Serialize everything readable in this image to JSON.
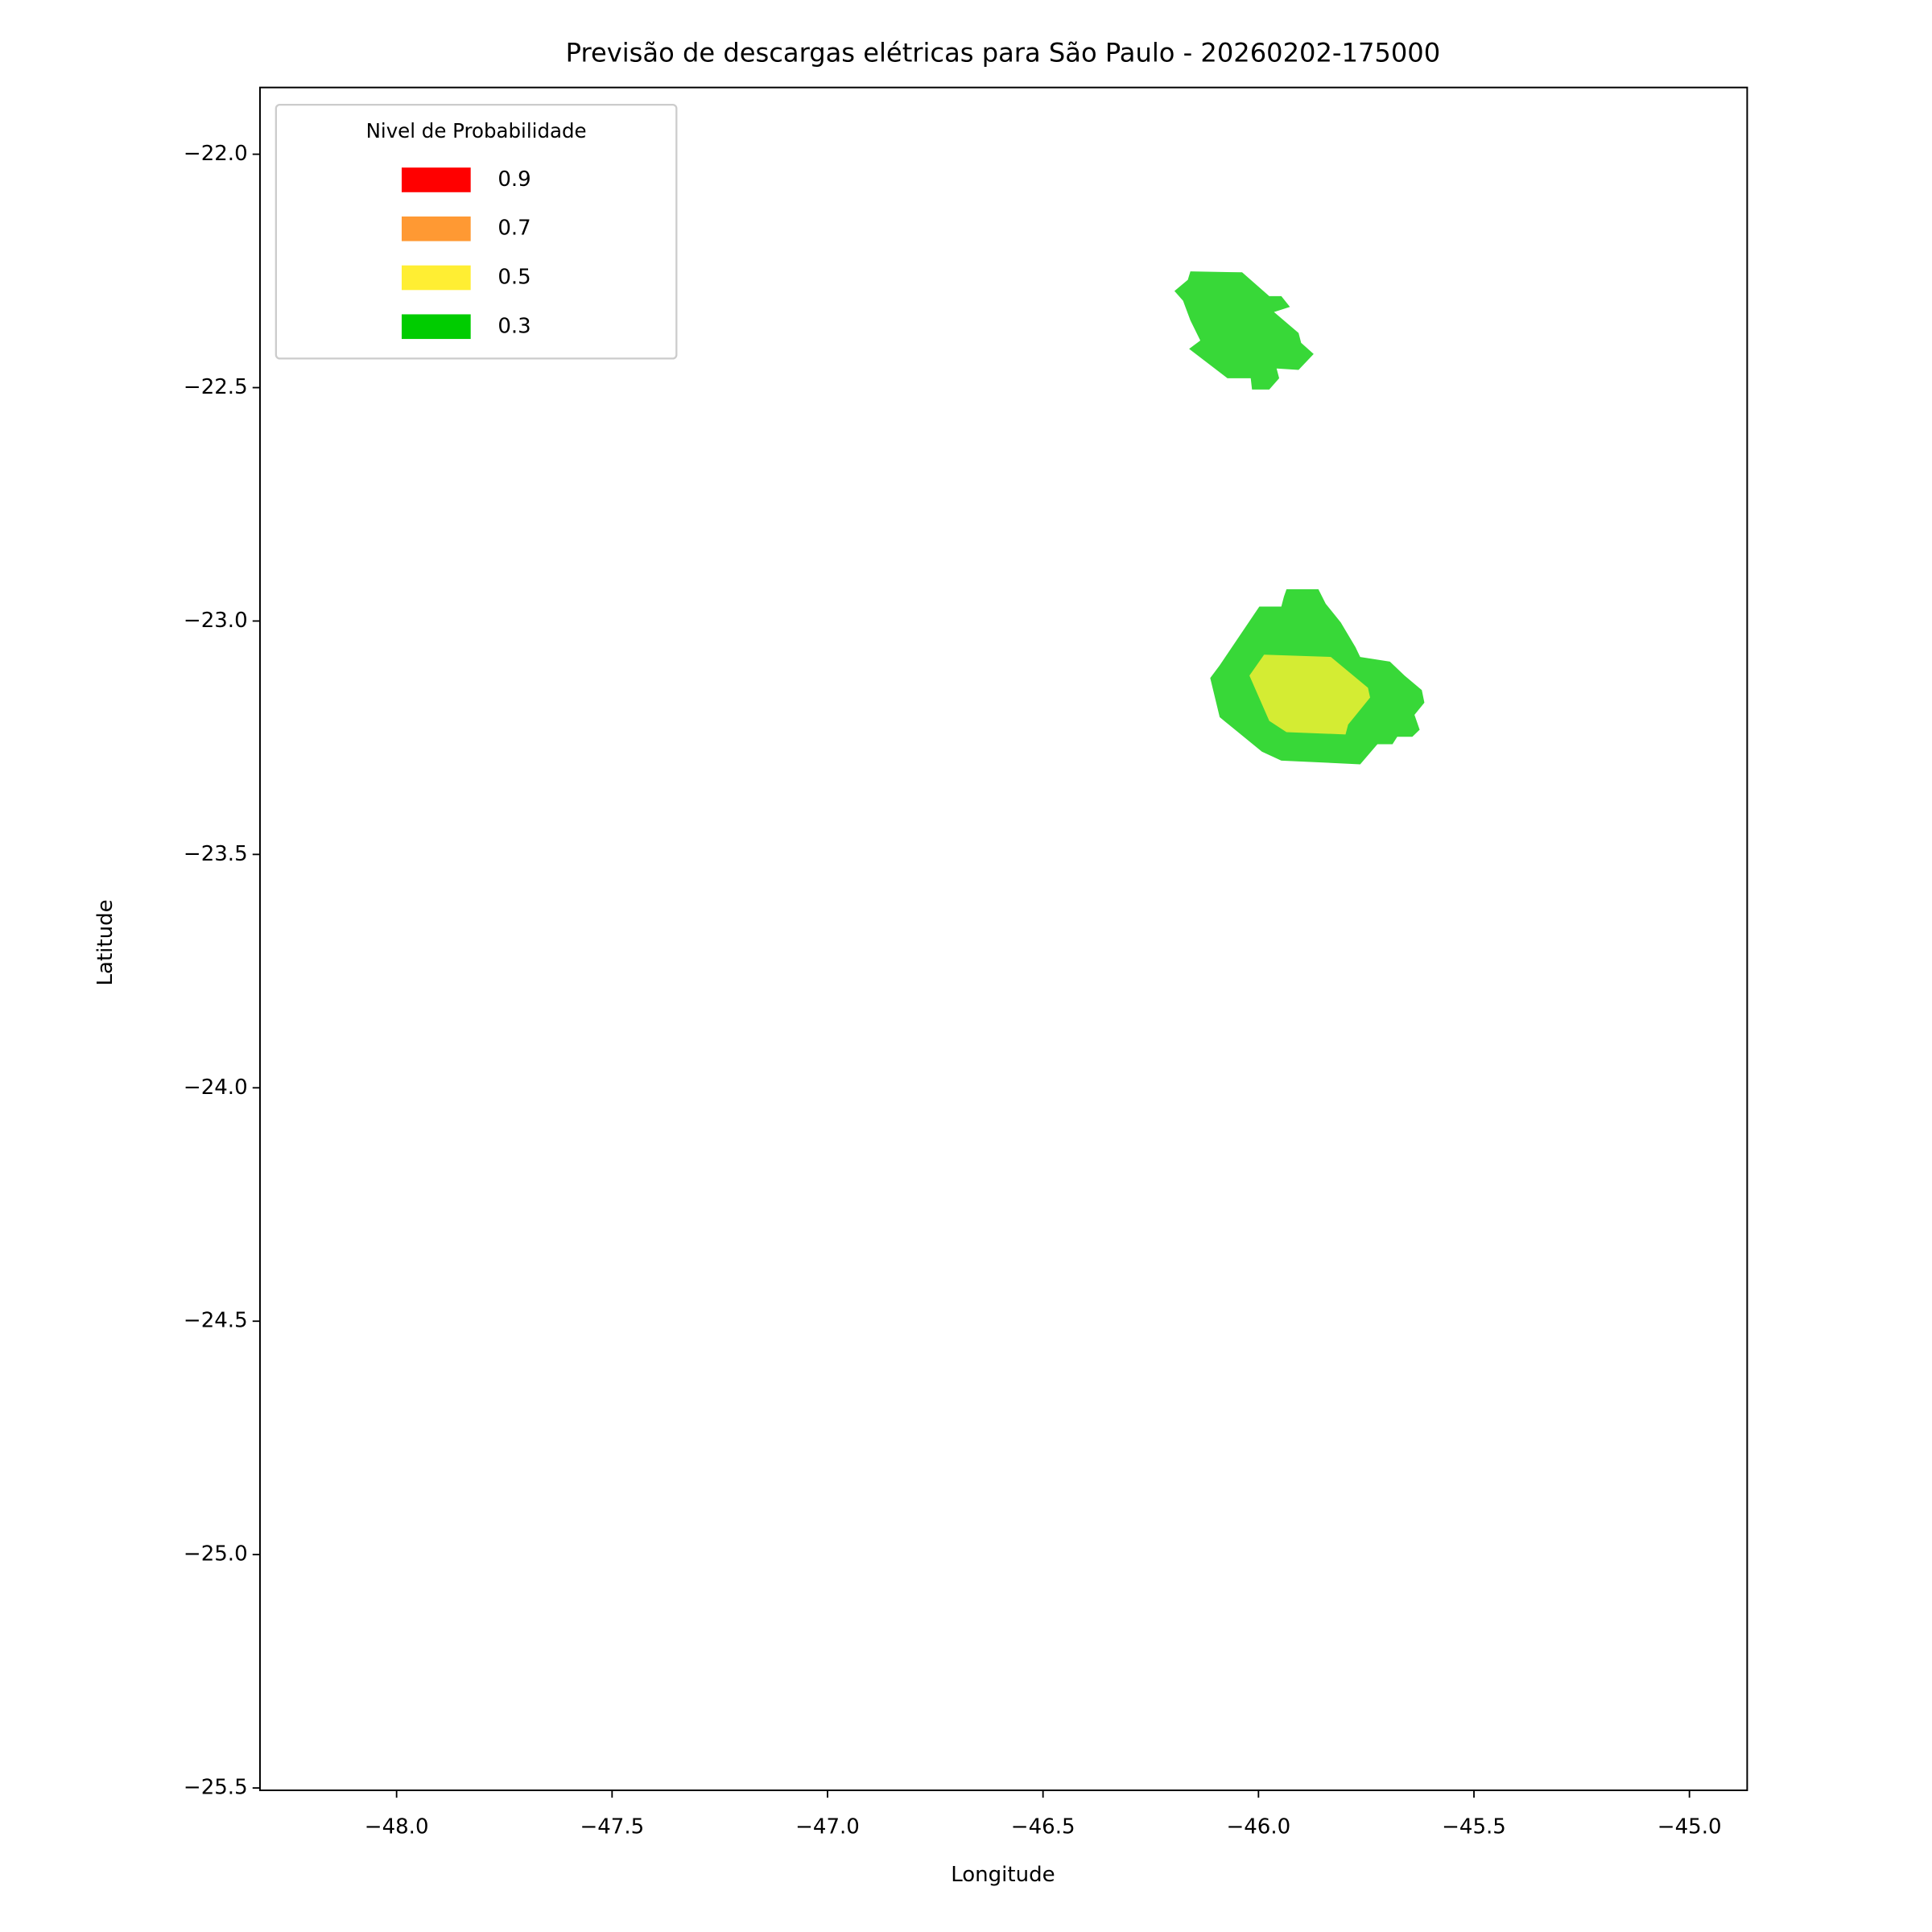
{
  "chart_data": {
    "type": "contour",
    "title": "Previsão de descargas elétricas para São Paulo - 20260202-175000",
    "xlabel": "Longitude",
    "ylabel": "Latitude",
    "xlim": [
      -48.317,
      -44.866
    ],
    "ylim": [
      -25.505,
      -21.857
    ],
    "xticks": [
      {
        "value": -48,
        "label": "−48.0"
      },
      {
        "value": -47.5,
        "label": "−47.5"
      },
      {
        "value": -47,
        "label": "−47.0"
      },
      {
        "value": -46.5,
        "label": "−46.5"
      },
      {
        "value": -46,
        "label": "−46.0"
      },
      {
        "value": -45.5,
        "label": "−45.5"
      },
      {
        "value": -45,
        "label": "−45.0"
      }
    ],
    "yticks": [
      {
        "value": -22,
        "label": "−22.0"
      },
      {
        "value": -22.5,
        "label": "−22.5"
      },
      {
        "value": -23,
        "label": "−23.0"
      },
      {
        "value": -23.5,
        "label": "−23.5"
      },
      {
        "value": -24,
        "label": "−24.0"
      },
      {
        "value": -24.5,
        "label": "−24.5"
      },
      {
        "value": -25,
        "label": "−25.0"
      },
      {
        "value": -25.5,
        "label": "−25.5"
      }
    ],
    "legend": {
      "title": "Nivel de Probabilidade",
      "position": "upper left",
      "entries": [
        {
          "label": "0.9",
          "color": "#ff0000"
        },
        {
          "label": "0.7",
          "color": "#ff9933"
        },
        {
          "label": "0.5",
          "color": "#ffee33"
        },
        {
          "label": "0.3",
          "color": "#00cc00"
        }
      ]
    },
    "regions": [
      {
        "color": "#38d838",
        "x": [
          -46.158,
          -46.038,
          -45.975,
          -45.947,
          -45.927,
          -45.964,
          -45.907,
          -45.901,
          -45.872,
          -45.907,
          -45.958,
          -45.952,
          -45.975,
          -46.015,
          -46.018,
          -46.072,
          -46.161,
          -46.135,
          -46.158,
          -46.175,
          -46.195,
          -46.164
        ],
        "y": [
          -22.251,
          -22.253,
          -22.304,
          -22.304,
          -22.327,
          -22.338,
          -22.383,
          -22.404,
          -22.428,
          -22.462,
          -22.459,
          -22.48,
          -22.504,
          -22.504,
          -22.48,
          -22.48,
          -22.417,
          -22.399,
          -22.356,
          -22.314,
          -22.293,
          -22.269
        ]
      },
      {
        "color": "#38d838",
        "x": [
          -45.935,
          -45.861,
          -45.844,
          -45.809,
          -45.775,
          -45.764,
          -45.695,
          -45.661,
          -45.621,
          -45.615,
          -45.638,
          -45.626,
          -45.643,
          -45.678,
          -45.689,
          -45.724,
          -45.764,
          -45.947,
          -45.992,
          -46.09,
          -46.112,
          -46.09,
          -45.998,
          -45.947,
          -45.941
        ],
        "y": [
          -22.932,
          -22.932,
          -22.963,
          -23.003,
          -23.056,
          -23.077,
          -23.087,
          -23.117,
          -23.148,
          -23.175,
          -23.201,
          -23.233,
          -23.248,
          -23.248,
          -23.264,
          -23.264,
          -23.307,
          -23.299,
          -23.28,
          -23.206,
          -23.122,
          -23.095,
          -22.969,
          -22.969,
          -22.948
        ]
      },
      {
        "color": "#d4ec33",
        "x": [
          -45.987,
          -45.832,
          -45.746,
          -45.741,
          -45.792,
          -45.798,
          -45.935,
          -45.975,
          -46.021
        ],
        "y": [
          -23.072,
          -23.077,
          -23.143,
          -23.164,
          -23.222,
          -23.243,
          -23.238,
          -23.214,
          -23.117
        ]
      }
    ]
  }
}
